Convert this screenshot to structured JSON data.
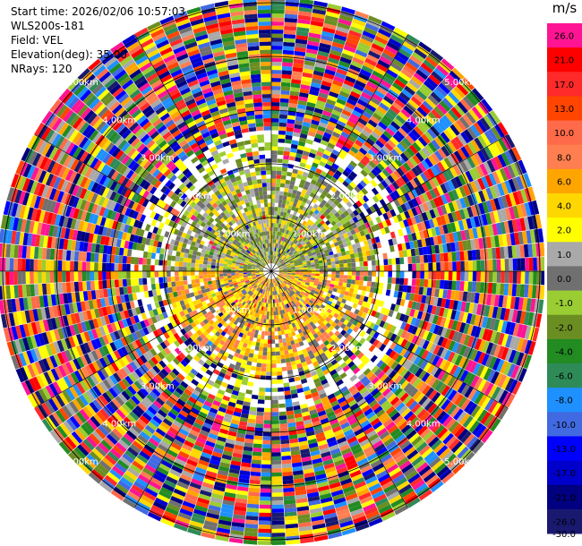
{
  "header": {
    "start_time": "Start time: 2026/02/06 10:57:03",
    "instrument": "WLS200s-181",
    "field": "Field: VEL",
    "elevation": "Elevation(deg): 35.00",
    "nrays": "NRays: 120"
  },
  "colorbar": {
    "unit": "m/s",
    "ticks": [
      "26.0",
      "21.0",
      "17.0",
      "13.0",
      "10.0",
      "8.0",
      "6.0",
      "4.0",
      "2.0",
      "1.0",
      "0.0",
      "-1.0",
      "-2.0",
      "-4.0",
      "-6.0",
      "-8.0",
      "-10.0",
      "-13.0",
      "-17.0",
      "-21.0",
      "-26.0",
      "-30.0"
    ],
    "colors": [
      "#ff1493",
      "#ff0000",
      "#ff2a2a",
      "#ff4500",
      "#ff6a4a",
      "#ff7f50",
      "#ffa500",
      "#ffd700",
      "#ffff00",
      "#a9a9a9",
      "#707070",
      "#9acd32",
      "#6b8e23",
      "#228b22",
      "#2e8b57",
      "#1e90ff",
      "#4169e1",
      "#0000ff",
      "#0000cd",
      "#000080",
      "#191970"
    ]
  },
  "chart_data": {
    "type": "heatmap",
    "projection": "polar PPI",
    "field": "VEL",
    "units": "m/s",
    "nrays": 120,
    "elevation_deg": 35.0,
    "range_rings_km": [
      1.0,
      2.0,
      3.0,
      4.0,
      5.0
    ],
    "range_labels": [
      "1.00km",
      "2.00km",
      "3.00km",
      "4.00km",
      "5.00km"
    ],
    "color_levels": [
      -30,
      -26,
      -21,
      -17,
      -13,
      -10,
      -8,
      -6,
      -4,
      -2,
      -1,
      0,
      1,
      2,
      4,
      6,
      8,
      10,
      13,
      17,
      21,
      26
    ],
    "pattern": {
      "near_field_north": "green/olive small negative velocities",
      "near_field_south": "yellow/orange small positive velocities",
      "beyond_2km": "noisy random velocities across full color scale"
    }
  }
}
